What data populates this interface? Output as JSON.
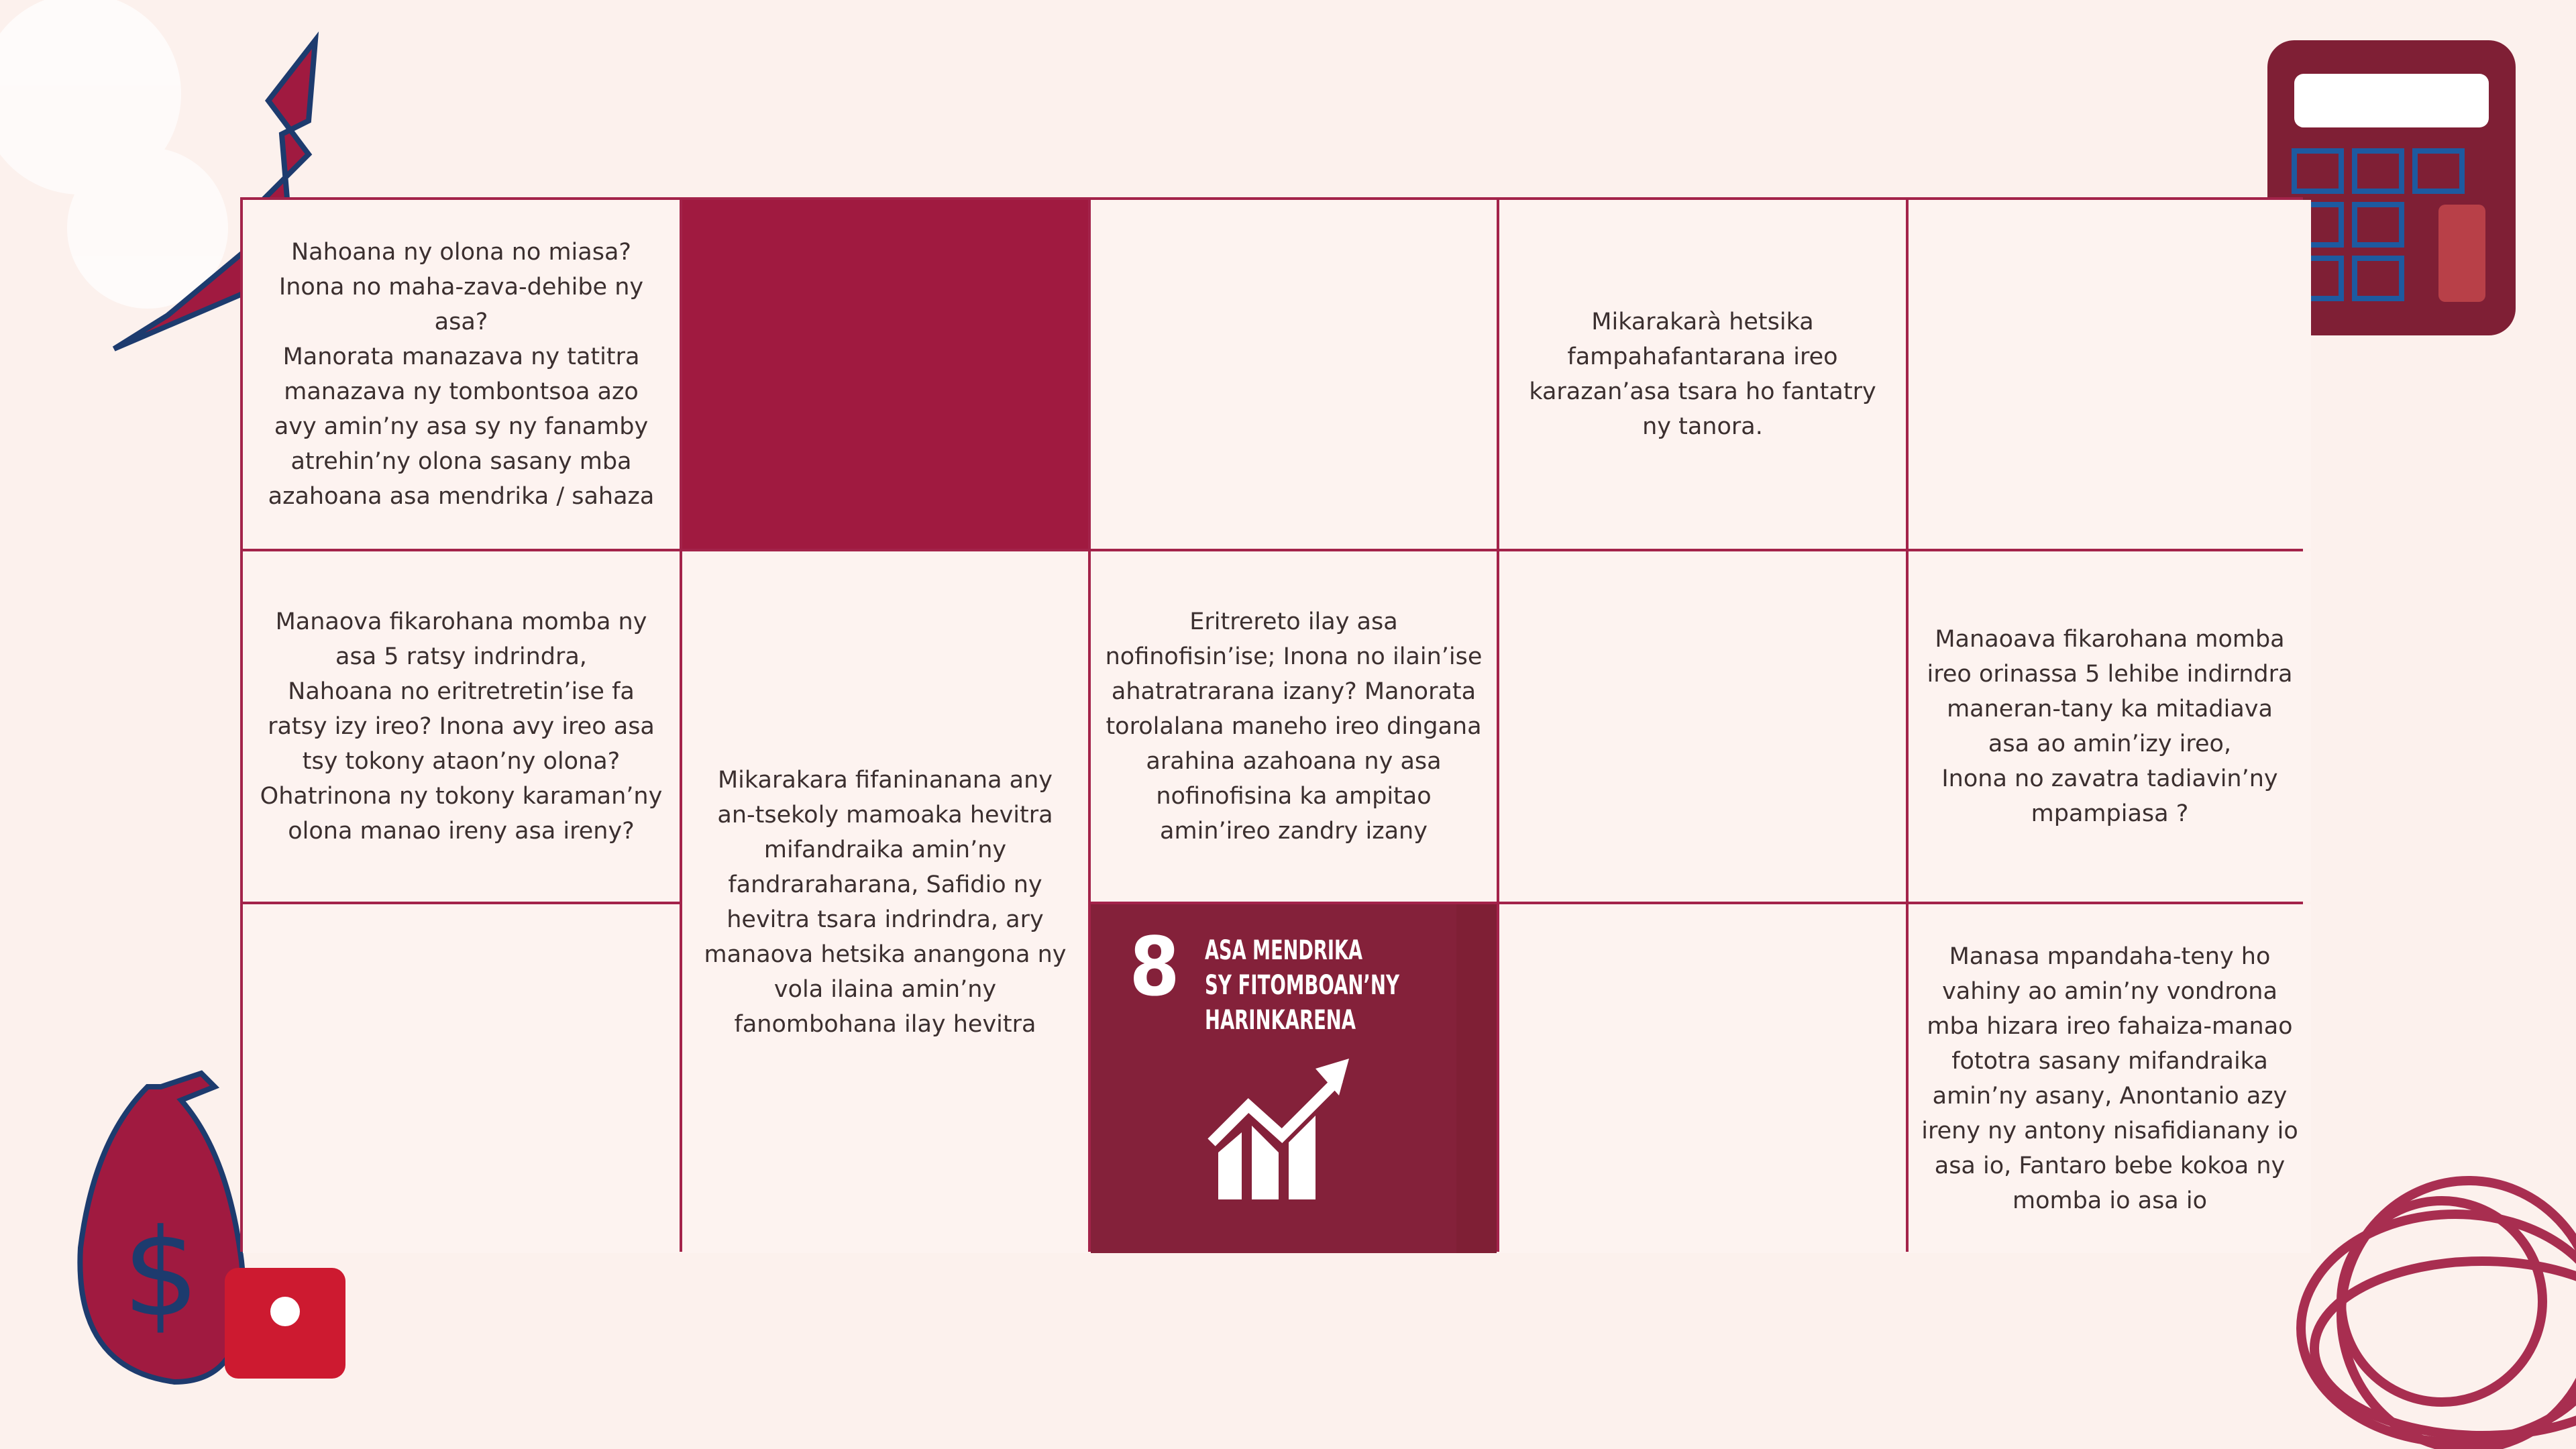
{
  "text_cells": [
    [
      "Nahoana ny olona no miasa?",
      "Inona no maha-zava-dehibe ny",
      "asa?",
      "Manorata manazava ny tatitra",
      "manazava ny tombontsoa azo",
      "avy amin’ny asa sy ny fanamby",
      "atrehin’ny olona sasany mba",
      "azahoana asa mendrika / sahaza"
    ],
    [
      "Mikarakarà hetsika",
      "fampahafantarana ireo",
      "karazan’asa tsara ho fantatry",
      "ny tanora."
    ],
    [
      "Manaova fikarohana momba ny",
      "asa 5 ratsy indrindra,",
      "Nahoana no eritretretin’ise fa",
      "ratsy izy ireo? Inona avy ireo asa",
      "tsy tokony ataon’ny olona?",
      "Ohatrinona ny tokony karaman’ny",
      "olona manao ireny asa ireny?"
    ],
    [
      "Mikarakara fifaninanana any",
      "an-tsekoly mamoaka hevitra",
      "mifandraika amin’ny",
      "fandraraharana, Safidio ny",
      "hevitra tsara indrindra, ary",
      "manaova hetsika anangona ny",
      "vola ilaina amin’ny",
      "fanombohana ilay hevitra"
    ],
    [
      "Eritrereto ilay asa",
      "nofinofisin’ise; Inona no ilain’ise",
      "ahatratrarana izany? Manorata",
      "torolalana maneho ireo dingana",
      "arahina azahoana ny asa",
      "nofinofisina ka ampitao",
      "amin’ireo zandry izany"
    ],
    [
      "Manaoava fikarohana momba",
      "ireo orinassa 5 lehibe indirndra",
      "maneran-tany ka mitadiava",
      "asa ao amin’izy ireo,",
      "Inona no zavatra tadiavin’ny",
      "mpampiasa ?"
    ],
    [
      "Manasa mpandaha-teny ho",
      "vahiny ao amin’ny vondrona",
      "mba hizara ireo fahaiza-manao",
      "fototra sasany mifandraika",
      "amin’ny asany, Anontanio azy",
      "ireny ny antony nisafidianany io",
      "asa io, Fantaro bebe kokoa ny",
      "momba io asa io"
    ]
  ],
  "goal": {
    "number": "8",
    "title_lines": [
      "ASA MENDRIKA",
      "SY FITOMBOAN’NY",
      "HARINKARENA"
    ]
  }
}
